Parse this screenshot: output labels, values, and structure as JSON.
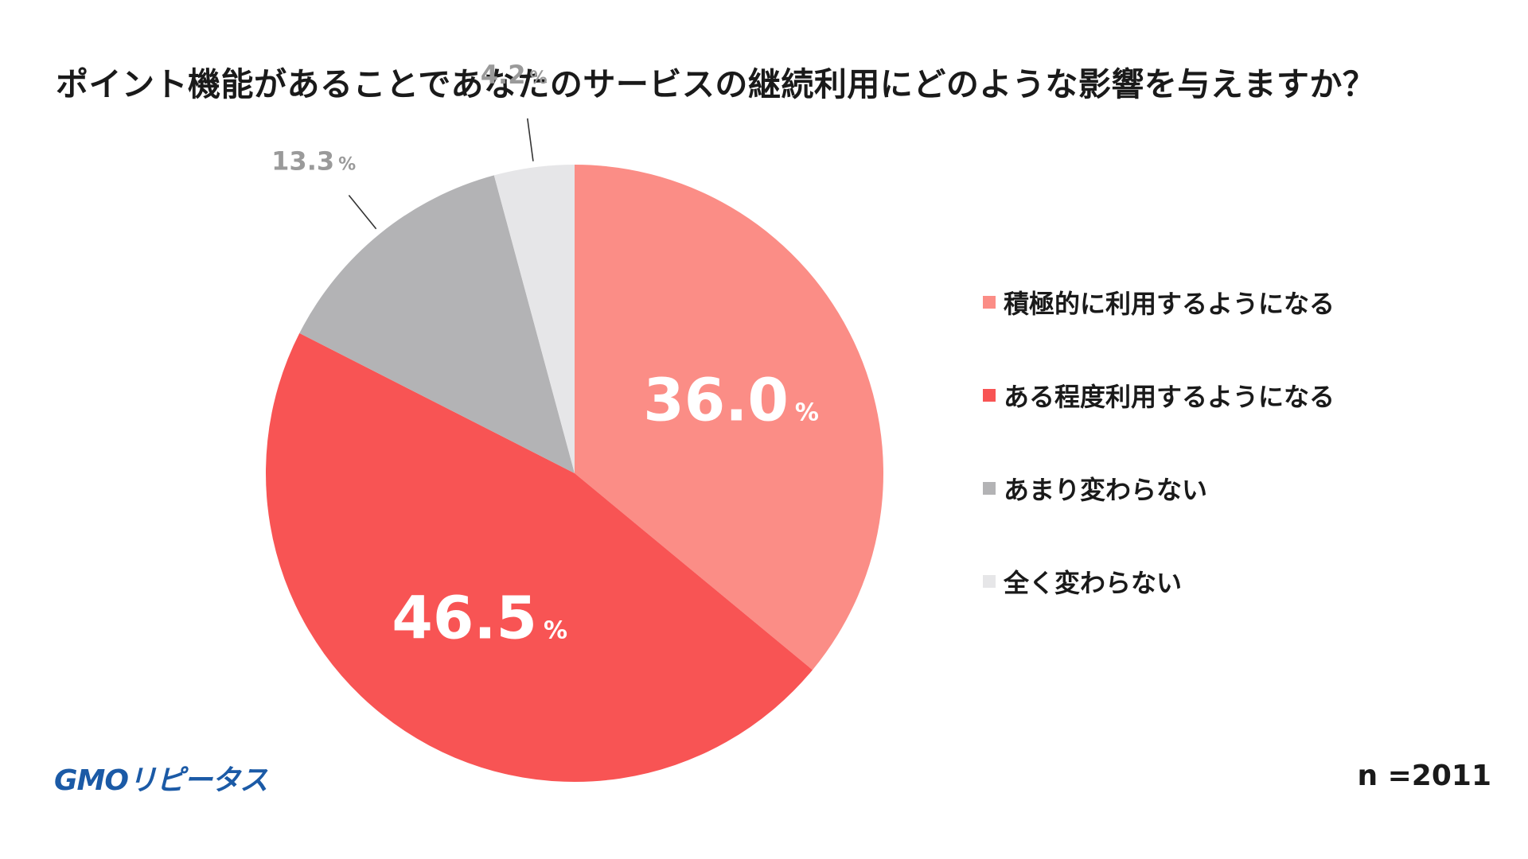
{
  "chart_data": {
    "type": "pie",
    "title": "ポイント機能があることであなたのサービスの継続利用にどのような影響を与えますか？",
    "unit": "%",
    "slices": [
      {
        "label": "積極的に利用するようになる",
        "value": 36.0,
        "value_text": "36.0",
        "color": "#fb8d86"
      },
      {
        "label": "ある程度利用するようになる",
        "value": 46.5,
        "value_text": "46.5",
        "color": "#f85454"
      },
      {
        "label": "あまり変わらない",
        "value": 13.3,
        "value_text": "13.3",
        "color": "#b3b3b5"
      },
      {
        "label": "全く変わらない",
        "value": 4.2,
        "value_text": "4.2",
        "color": "#e6e6e8"
      }
    ],
    "legend_position": "right",
    "start_angle": "12 o'clock",
    "direction": "clockwise"
  },
  "footer": {
    "brand_logo": "GMOリピータス",
    "sample_size": "n =2011"
  }
}
